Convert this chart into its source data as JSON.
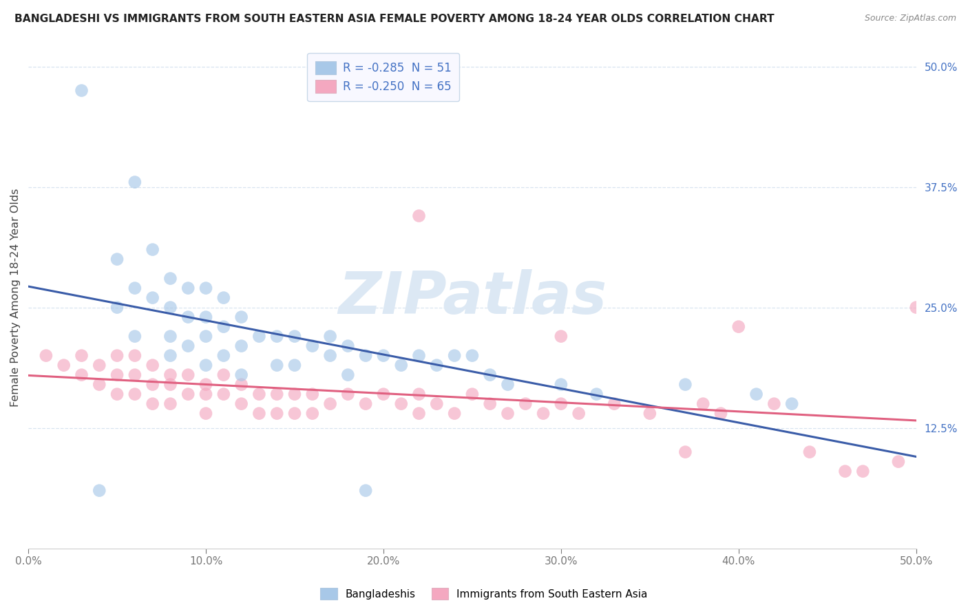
{
  "title": "BANGLADESHI VS IMMIGRANTS FROM SOUTH EASTERN ASIA FEMALE POVERTY AMONG 18-24 YEAR OLDS CORRELATION CHART",
  "source": "Source: ZipAtlas.com",
  "ylabel": "Female Poverty Among 18-24 Year Olds",
  "xlim": [
    0.0,
    0.5
  ],
  "ylim": [
    0.0,
    0.5
  ],
  "xtick_vals": [
    0.0,
    0.1,
    0.2,
    0.3,
    0.4,
    0.5
  ],
  "xtick_labels": [
    "0.0%",
    "10.0%",
    "20.0%",
    "30.0%",
    "40.0%",
    "50.0%"
  ],
  "ytick_vals": [
    0.125,
    0.25,
    0.375,
    0.5
  ],
  "ytick_labels": [
    "12.5%",
    "25.0%",
    "37.5%",
    "50.0%"
  ],
  "legend_line1": "R = -0.285  N = 51",
  "legend_line2": "R = -0.250  N = 65",
  "bangladeshi_color": "#a8c8e8",
  "sea_color": "#f4a8c0",
  "trend_blue_color": "#3a5ca8",
  "trend_pink_color": "#e06080",
  "background_color": "#ffffff",
  "grid_color": "#d8e4f0",
  "watermark_color": "#dce8f4",
  "title_color": "#222222",
  "source_color": "#888888",
  "axis_label_color": "#444444",
  "tick_color": "#777777",
  "right_tick_color": "#4472c4",
  "bangladeshi_R": -0.285,
  "bangladeshi_N": 51,
  "sea_R": -0.25,
  "sea_N": 65,
  "scatter_size": 180,
  "scatter_alpha": 0.65,
  "trend_lw": 2.2,
  "bangladeshi_x": [
    0.03,
    0.06,
    0.05,
    0.05,
    0.06,
    0.06,
    0.07,
    0.07,
    0.08,
    0.08,
    0.08,
    0.08,
    0.09,
    0.09,
    0.09,
    0.1,
    0.1,
    0.1,
    0.1,
    0.11,
    0.11,
    0.11,
    0.12,
    0.12,
    0.12,
    0.13,
    0.14,
    0.14,
    0.15,
    0.15,
    0.16,
    0.17,
    0.17,
    0.18,
    0.18,
    0.19,
    0.2,
    0.21,
    0.22,
    0.23,
    0.24,
    0.25,
    0.26,
    0.27,
    0.3,
    0.32,
    0.37,
    0.41,
    0.43,
    0.04,
    0.19
  ],
  "bangladeshi_y": [
    0.475,
    0.38,
    0.3,
    0.25,
    0.27,
    0.22,
    0.31,
    0.26,
    0.28,
    0.25,
    0.22,
    0.2,
    0.27,
    0.24,
    0.21,
    0.27,
    0.24,
    0.22,
    0.19,
    0.26,
    0.23,
    0.2,
    0.24,
    0.21,
    0.18,
    0.22,
    0.22,
    0.19,
    0.22,
    0.19,
    0.21,
    0.22,
    0.2,
    0.21,
    0.18,
    0.2,
    0.2,
    0.19,
    0.2,
    0.19,
    0.2,
    0.2,
    0.18,
    0.17,
    0.17,
    0.16,
    0.17,
    0.16,
    0.15,
    0.06,
    0.06
  ],
  "sea_x": [
    0.01,
    0.02,
    0.03,
    0.03,
    0.04,
    0.04,
    0.05,
    0.05,
    0.05,
    0.06,
    0.06,
    0.06,
    0.07,
    0.07,
    0.07,
    0.08,
    0.08,
    0.08,
    0.09,
    0.09,
    0.1,
    0.1,
    0.1,
    0.11,
    0.11,
    0.12,
    0.12,
    0.13,
    0.13,
    0.14,
    0.14,
    0.15,
    0.15,
    0.16,
    0.16,
    0.17,
    0.18,
    0.19,
    0.2,
    0.21,
    0.22,
    0.22,
    0.23,
    0.24,
    0.25,
    0.26,
    0.27,
    0.28,
    0.29,
    0.3,
    0.31,
    0.33,
    0.35,
    0.37,
    0.38,
    0.39,
    0.4,
    0.42,
    0.44,
    0.46,
    0.47,
    0.49,
    0.22,
    0.3,
    0.5
  ],
  "sea_y": [
    0.2,
    0.19,
    0.2,
    0.18,
    0.19,
    0.17,
    0.2,
    0.18,
    0.16,
    0.2,
    0.18,
    0.16,
    0.19,
    0.17,
    0.15,
    0.18,
    0.17,
    0.15,
    0.18,
    0.16,
    0.17,
    0.16,
    0.14,
    0.18,
    0.16,
    0.17,
    0.15,
    0.16,
    0.14,
    0.16,
    0.14,
    0.16,
    0.14,
    0.16,
    0.14,
    0.15,
    0.16,
    0.15,
    0.16,
    0.15,
    0.14,
    0.16,
    0.15,
    0.14,
    0.16,
    0.15,
    0.14,
    0.15,
    0.14,
    0.15,
    0.14,
    0.15,
    0.14,
    0.1,
    0.15,
    0.14,
    0.23,
    0.15,
    0.1,
    0.08,
    0.08,
    0.09,
    0.345,
    0.22,
    0.25
  ]
}
